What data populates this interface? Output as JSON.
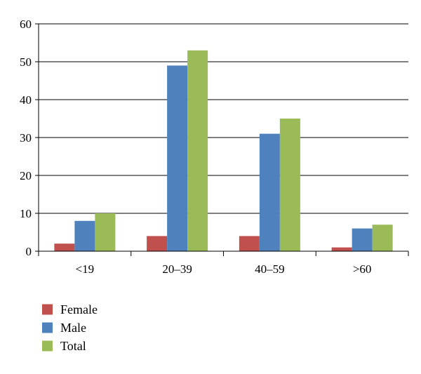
{
  "chart_data": {
    "type": "bar",
    "categories": [
      "<19",
      "20–39",
      "40–59",
      ">60"
    ],
    "series": [
      {
        "name": "Female",
        "values": [
          2,
          4,
          4,
          1
        ],
        "color": "#c0504d"
      },
      {
        "name": "Male",
        "values": [
          8,
          49,
          31,
          6
        ],
        "color": "#4f81bd"
      },
      {
        "name": "Total",
        "values": [
          10,
          53,
          35,
          7
        ],
        "color": "#9bbb59"
      }
    ],
    "title": "",
    "xlabel": "",
    "ylabel": "",
    "ylim": [
      0,
      60
    ],
    "yticks": [
      0,
      10,
      20,
      30,
      40,
      50,
      60
    ],
    "grid": true,
    "legend_position": "bottom-left"
  }
}
